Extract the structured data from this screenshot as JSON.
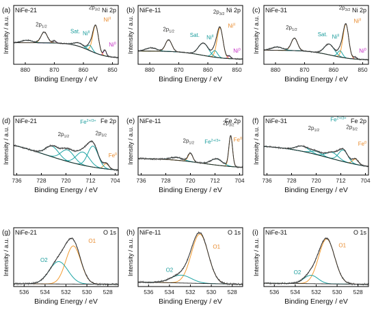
{
  "figure": {
    "colors": {
      "raw": "#7a7a7a",
      "envelope": "#2b2b2b",
      "background": "#1f1f1f",
      "teal": "#1aa3a3",
      "orange": "#f29a2e",
      "magenta": "#d23fd2",
      "label_teal": "#1a9c9c",
      "label_orange": "#e8892a",
      "label_magenta": "#c42fc4"
    }
  },
  "chart_data": [
    {
      "id": "a",
      "type": "line",
      "panel_label": "(a)",
      "sample": "NiFe-21",
      "core_level": "Ni 2p",
      "xlabel": "Binding Energy / eV",
      "ylabel": "Intensity / a.u.",
      "xlim": [
        884,
        848
      ],
      "xticks": [
        "880",
        "870",
        "860",
        "850"
      ],
      "xtick_values": [
        880,
        870,
        860,
        850
      ],
      "baseline": {
        "type": "shirley",
        "lo": 0.15,
        "hi": 0.52,
        "center": 858,
        "width": 3
      },
      "peaks": [
        {
          "name": "Ni0",
          "position": 852.6,
          "fwhm": 1.2,
          "height": 0.14,
          "color": "magenta"
        },
        {
          "name": "Ni2+ 2p3/2",
          "position": 855.8,
          "fwhm": 2.3,
          "height": 0.67,
          "color": "orange"
        },
        {
          "name": "NiII",
          "position": 857.8,
          "fwhm": 2.0,
          "height": 0.13,
          "color": "teal"
        },
        {
          "name": "Sat.",
          "position": 861.5,
          "fwhm": 4.0,
          "height": 0.08,
          "color": "teal"
        },
        {
          "name": "Ni0 2p1/2",
          "position": 870.0,
          "fwhm": 1.5,
          "height": 0.05,
          "color": "magenta"
        },
        {
          "name": "2p1/2",
          "position": 873.5,
          "fwhm": 2.6,
          "height": 0.26,
          "color": "orange"
        },
        {
          "name": "Sat. 2p1/2",
          "position": 879.5,
          "fwhm": 4.5,
          "height": 0.06,
          "color": "teal"
        }
      ],
      "annotations": [
        {
          "text": "2p",
          "sub": "1/2",
          "x": 874.5,
          "y": 0.92,
          "color": "envelope"
        },
        {
          "text": "2p",
          "sub": "3/2",
          "x": 856.2,
          "y": 1.33,
          "color": "envelope"
        },
        {
          "text": "Sat.",
          "x": 862.8,
          "y": 0.75,
          "color": "teal"
        },
        {
          "text": "Ni",
          "sup": "II",
          "x": 859.0,
          "y": 0.7,
          "color": "teal"
        },
        {
          "text": "Ni",
          "sup": "II",
          "x": 851.8,
          "y": 1.03,
          "color": "orange"
        },
        {
          "text": "Ni",
          "sup": "0",
          "x": 850.0,
          "y": 0.43,
          "color": "magenta"
        }
      ],
      "ylim": [
        0,
        1.42
      ]
    },
    {
      "id": "b",
      "type": "line",
      "panel_label": "(b)",
      "sample": "NiFe-11",
      "core_level": "Ni 2p",
      "xlabel": "Binding Energy / eV",
      "ylabel": "Intensity / a.u.",
      "xlim": [
        884,
        848
      ],
      "xticks": [
        "880",
        "870",
        "860",
        "850"
      ],
      "xtick_values": [
        880,
        870,
        860,
        850
      ],
      "baseline": {
        "type": "shirley",
        "lo": 0.12,
        "hi": 0.32,
        "center": 862,
        "width": 4
      },
      "peaks": [
        {
          "name": "Ni0",
          "position": 852.6,
          "fwhm": 1.3,
          "height": 0.06,
          "color": "magenta"
        },
        {
          "name": "Ni2+ 2p3/2",
          "position": 855.8,
          "fwhm": 2.4,
          "height": 0.72,
          "color": "orange"
        },
        {
          "name": "NiII",
          "position": 857.6,
          "fwhm": 2.2,
          "height": 0.16,
          "color": "teal"
        },
        {
          "name": "Sat.",
          "position": 861.5,
          "fwhm": 4.0,
          "height": 0.3,
          "color": "teal"
        },
        {
          "name": "2p1/2",
          "position": 873.5,
          "fwhm": 2.6,
          "height": 0.28,
          "color": "orange"
        },
        {
          "name": "Sat. 2p1/2",
          "position": 879.5,
          "fwhm": 4.5,
          "height": 0.08,
          "color": "teal"
        }
      ],
      "annotations": [
        {
          "text": "2p",
          "sub": "1/2",
          "x": 873.5,
          "y": 0.8,
          "color": "envelope"
        },
        {
          "text": "2p",
          "sub": "3/2",
          "x": 856.2,
          "y": 1.22,
          "color": "envelope"
        },
        {
          "text": "Sat.",
          "x": 864.5,
          "y": 0.66,
          "color": "teal"
        },
        {
          "text": "Ni",
          "sup": "II",
          "x": 859.2,
          "y": 0.6,
          "color": "teal"
        },
        {
          "text": "Ni",
          "sup": "II",
          "x": 851.8,
          "y": 0.88,
          "color": "orange"
        },
        {
          "text": "Ni",
          "sup": "0",
          "x": 850.0,
          "y": 0.28,
          "color": "magenta"
        }
      ],
      "ylim": [
        0,
        1.42
      ]
    },
    {
      "id": "c",
      "type": "line",
      "panel_label": "(c)",
      "sample": "NiFe-31",
      "core_level": "Ni 2p",
      "xlabel": "Binding Energy / eV",
      "ylabel": "Intensity / a.u.",
      "xlim": [
        884,
        848
      ],
      "xticks": [
        "880",
        "870",
        "860",
        "850"
      ],
      "xtick_values": [
        880,
        870,
        860,
        850
      ],
      "baseline": {
        "type": "shirley",
        "lo": 0.1,
        "hi": 0.34,
        "center": 861,
        "width": 4
      },
      "peaks": [
        {
          "name": "Ni0",
          "position": 852.6,
          "fwhm": 1.3,
          "height": 0.05,
          "color": "magenta"
        },
        {
          "name": "Ni2+ 2p3/2",
          "position": 855.8,
          "fwhm": 2.3,
          "height": 0.82,
          "color": "orange"
        },
        {
          "name": "NiII",
          "position": 857.8,
          "fwhm": 2.0,
          "height": 0.15,
          "color": "teal"
        },
        {
          "name": "Sat.",
          "position": 861.5,
          "fwhm": 4.0,
          "height": 0.26,
          "color": "teal"
        },
        {
          "name": "2p1/2",
          "position": 873.5,
          "fwhm": 2.6,
          "height": 0.3,
          "color": "orange"
        },
        {
          "name": "Sat. 2p1/2",
          "position": 879.5,
          "fwhm": 4.5,
          "height": 0.08,
          "color": "teal"
        }
      ],
      "annotations": [
        {
          "text": "2p",
          "sub": "1/2",
          "x": 874.5,
          "y": 0.84,
          "color": "envelope"
        },
        {
          "text": "2p",
          "sub": "3/2",
          "x": 856.2,
          "y": 1.32,
          "color": "envelope"
        },
        {
          "text": "Sat.",
          "x": 863.8,
          "y": 0.68,
          "color": "teal"
        },
        {
          "text": "Ni",
          "sup": "II",
          "x": 859.3,
          "y": 0.62,
          "color": "teal"
        },
        {
          "text": "Ni",
          "sup": "II",
          "x": 851.8,
          "y": 1.0,
          "color": "orange"
        },
        {
          "text": "Ni",
          "sup": "0",
          "x": 850.0,
          "y": 0.28,
          "color": "magenta"
        }
      ],
      "ylim": [
        0,
        1.42
      ]
    },
    {
      "id": "d",
      "type": "line",
      "panel_label": "(d)",
      "sample": "NiFe-21",
      "core_level": "Fe 2p",
      "xlabel": "Binding Energy / eV",
      "ylabel": "Intensity / a.u.",
      "xlim": [
        737,
        703
      ],
      "xticks": [
        "736",
        "728",
        "720",
        "712",
        "704"
      ],
      "xtick_values": [
        736,
        728,
        720,
        712,
        704
      ],
      "baseline": {
        "type": "decay",
        "lo": 0.05,
        "hi": 0.74,
        "center": 727,
        "width": 9
      },
      "peaks": [
        {
          "name": "Fe0",
          "position": 706.9,
          "fwhm": 2.0,
          "height": 0.1,
          "color": "orange"
        },
        {
          "name": "Fe2+/3+ 2p3/2",
          "position": 711.2,
          "fwhm": 4.0,
          "height": 0.4,
          "color": "teal"
        },
        {
          "name": "Fe 2p3/2 b",
          "position": 714.5,
          "fwhm": 5.0,
          "height": 0.25,
          "color": "teal"
        },
        {
          "name": "Fe 2p1/2",
          "position": 724.5,
          "fwhm": 5.0,
          "height": 0.2,
          "color": "teal"
        },
        {
          "name": "Fe 2p1/2 b",
          "position": 719.5,
          "fwhm": 5.0,
          "height": 0.22,
          "color": "teal"
        }
      ],
      "annotations": [
        {
          "text": "2p",
          "sub": "1/2",
          "x": 720.8,
          "y": 0.74,
          "color": "envelope"
        },
        {
          "text": "Fe",
          "sup": "2+/3+",
          "x": 712.8,
          "y": 0.98,
          "color": "teal"
        },
        {
          "text": "2p",
          "sub": "3/2",
          "x": 708.6,
          "y": 0.76,
          "color": "envelope"
        },
        {
          "text": "Fe",
          "sup": "0",
          "x": 704.8,
          "y": 0.34,
          "color": "orange"
        }
      ],
      "ylim": [
        0,
        1.12
      ]
    },
    {
      "id": "e",
      "type": "line",
      "panel_label": "(e)",
      "sample": "NiFe-11",
      "core_level": "Fe 2p",
      "xlabel": "Binding Energy / eV",
      "ylabel": "Intensity / a.u.",
      "xlim": [
        737,
        703
      ],
      "xticks": [
        "736",
        "728",
        "720",
        "712",
        "704"
      ],
      "xtick_values": [
        736,
        728,
        720,
        712,
        704
      ],
      "baseline": {
        "type": "shirley",
        "lo": 0.12,
        "hi": 0.3,
        "center": 716,
        "width": 6
      },
      "peaks": [
        {
          "name": "Fe0",
          "position": 706.9,
          "fwhm": 1.4,
          "height": 0.55,
          "color": "orange"
        },
        {
          "name": "Fe2+/3+ 2p3/2",
          "position": 711.5,
          "fwhm": 4.5,
          "height": 0.11,
          "color": "teal"
        },
        {
          "name": "Fe0 2p1/2",
          "position": 720.0,
          "fwhm": 1.8,
          "height": 0.15,
          "color": "orange"
        },
        {
          "name": "Fe 2p1/2",
          "position": 724.5,
          "fwhm": 5.0,
          "height": 0.05,
          "color": "teal"
        }
      ],
      "annotations": [
        {
          "text": "2p",
          "sub": "1/2",
          "x": 720.6,
          "y": 0.58,
          "color": "envelope"
        },
        {
          "text": "Fe",
          "sup": "2+/3+",
          "x": 712.8,
          "y": 0.56,
          "color": "teal"
        },
        {
          "text": "2p",
          "sub": "3/2",
          "x": 707.6,
          "y": 0.9,
          "color": "envelope"
        },
        {
          "text": "Fe",
          "sup": "0",
          "x": 704.6,
          "y": 0.6,
          "color": "orange"
        }
      ],
      "ylim": [
        0,
        1.05
      ]
    },
    {
      "id": "f",
      "type": "line",
      "panel_label": "(f)",
      "sample": "NiFe-31",
      "core_level": "Fe 2p",
      "xlabel": "Binding Energy / eV",
      "ylabel": "Intensity / a.u.",
      "xlim": [
        737,
        703
      ],
      "xticks": [
        "736",
        "728",
        "720",
        "712",
        "704"
      ],
      "xtick_values": [
        736,
        728,
        720,
        712,
        704
      ],
      "baseline": {
        "type": "shirley",
        "lo": 0.08,
        "hi": 0.58,
        "center": 716,
        "width": 8
      },
      "peaks": [
        {
          "name": "Fe0",
          "position": 707.2,
          "fwhm": 2.2,
          "height": 0.1,
          "color": "orange"
        },
        {
          "name": "Fe2+/3+ 2p3/2",
          "position": 711.2,
          "fwhm": 3.5,
          "height": 0.22,
          "color": "teal"
        },
        {
          "name": "Fe 2p3/2 b",
          "position": 714.8,
          "fwhm": 4.5,
          "height": 0.12,
          "color": "teal"
        },
        {
          "name": "Fe 2p1/2",
          "position": 724.5,
          "fwhm": 5.0,
          "height": 0.1,
          "color": "teal"
        },
        {
          "name": "Fe 2p1/2 b",
          "position": 720.0,
          "fwhm": 4.0,
          "height": 0.06,
          "color": "teal"
        }
      ],
      "annotations": [
        {
          "text": "2p",
          "sub": "1/2",
          "x": 720.8,
          "y": 0.86,
          "color": "envelope"
        },
        {
          "text": "Fe",
          "sup": "2+/3+",
          "x": 712.8,
          "y": 1.02,
          "color": "teal"
        },
        {
          "text": "2p",
          "sub": "3/2",
          "x": 708.4,
          "y": 0.88,
          "color": "envelope"
        },
        {
          "text": "Fe",
          "sup": "0",
          "x": 705.0,
          "y": 0.56,
          "color": "orange"
        }
      ],
      "ylim": [
        0,
        1.12
      ]
    },
    {
      "id": "g",
      "type": "line",
      "panel_label": "(g)",
      "sample": "NiFe-21",
      "core_level": "O 1s",
      "xlabel": "Binding Energy / eV",
      "ylabel": "Intensity / a.u.",
      "xlim": [
        537,
        527
      ],
      "xticks": [
        "536",
        "534",
        "532",
        "530",
        "528"
      ],
      "xtick_values": [
        536,
        534,
        532,
        530,
        528
      ],
      "baseline": {
        "type": "linear",
        "lo": 0.04,
        "hi": 0.05
      },
      "peaks": [
        {
          "name": "O1",
          "position": 531.3,
          "fwhm": 1.7,
          "height": 0.68,
          "color": "orange"
        },
        {
          "name": "O2",
          "position": 532.7,
          "fwhm": 2.1,
          "height": 0.4,
          "color": "teal"
        }
      ],
      "annotations": [
        {
          "text": "O1",
          "x": 529.5,
          "y": 0.78,
          "color": "orange"
        },
        {
          "text": "O2",
          "x": 534.1,
          "y": 0.44,
          "color": "teal"
        }
      ],
      "ylim": [
        0,
        1.05
      ]
    },
    {
      "id": "h",
      "type": "line",
      "panel_label": "(h)",
      "sample": "NiFe-11",
      "core_level": "O 1s",
      "xlabel": "Binding Energy / eV",
      "ylabel": "Intensity / a.u.",
      "xlim": [
        537,
        527
      ],
      "xticks": [
        "536",
        "534",
        "532",
        "530",
        "528"
      ],
      "xtick_values": [
        536,
        534,
        532,
        530,
        528
      ],
      "baseline": {
        "type": "linear",
        "lo": 0.04,
        "hi": 0.08
      },
      "peaks": [
        {
          "name": "O1",
          "position": 531.1,
          "fwhm": 1.9,
          "height": 0.88,
          "color": "orange"
        },
        {
          "name": "O2",
          "position": 532.9,
          "fwhm": 2.3,
          "height": 0.14,
          "color": "teal"
        }
      ],
      "annotations": [
        {
          "text": "O1",
          "x": 529.5,
          "y": 0.68,
          "color": "orange"
        },
        {
          "text": "O2",
          "x": 534.0,
          "y": 0.26,
          "color": "teal"
        }
      ],
      "ylim": [
        0,
        1.05
      ]
    },
    {
      "id": "i",
      "type": "line",
      "panel_label": "(i)",
      "sample": "NiFe-31",
      "core_level": "O 1s",
      "xlabel": "Binding Energy / eV",
      "ylabel": "Intensity / a.u.",
      "xlim": [
        537,
        527
      ],
      "xticks": [
        "536",
        "534",
        "532",
        "530",
        "528"
      ],
      "xtick_values": [
        536,
        534,
        532,
        530,
        528
      ],
      "baseline": {
        "type": "linear",
        "lo": 0.04,
        "hi": 0.06
      },
      "peaks": [
        {
          "name": "O1",
          "position": 531.0,
          "fwhm": 1.8,
          "height": 0.8,
          "color": "orange"
        },
        {
          "name": "O2",
          "position": 532.5,
          "fwhm": 1.6,
          "height": 0.15,
          "color": "teal"
        }
      ],
      "annotations": [
        {
          "text": "O1",
          "x": 529.5,
          "y": 0.7,
          "color": "orange"
        },
        {
          "text": "O2",
          "x": 533.8,
          "y": 0.22,
          "color": "teal"
        }
      ],
      "ylim": [
        0,
        1.05
      ]
    }
  ]
}
